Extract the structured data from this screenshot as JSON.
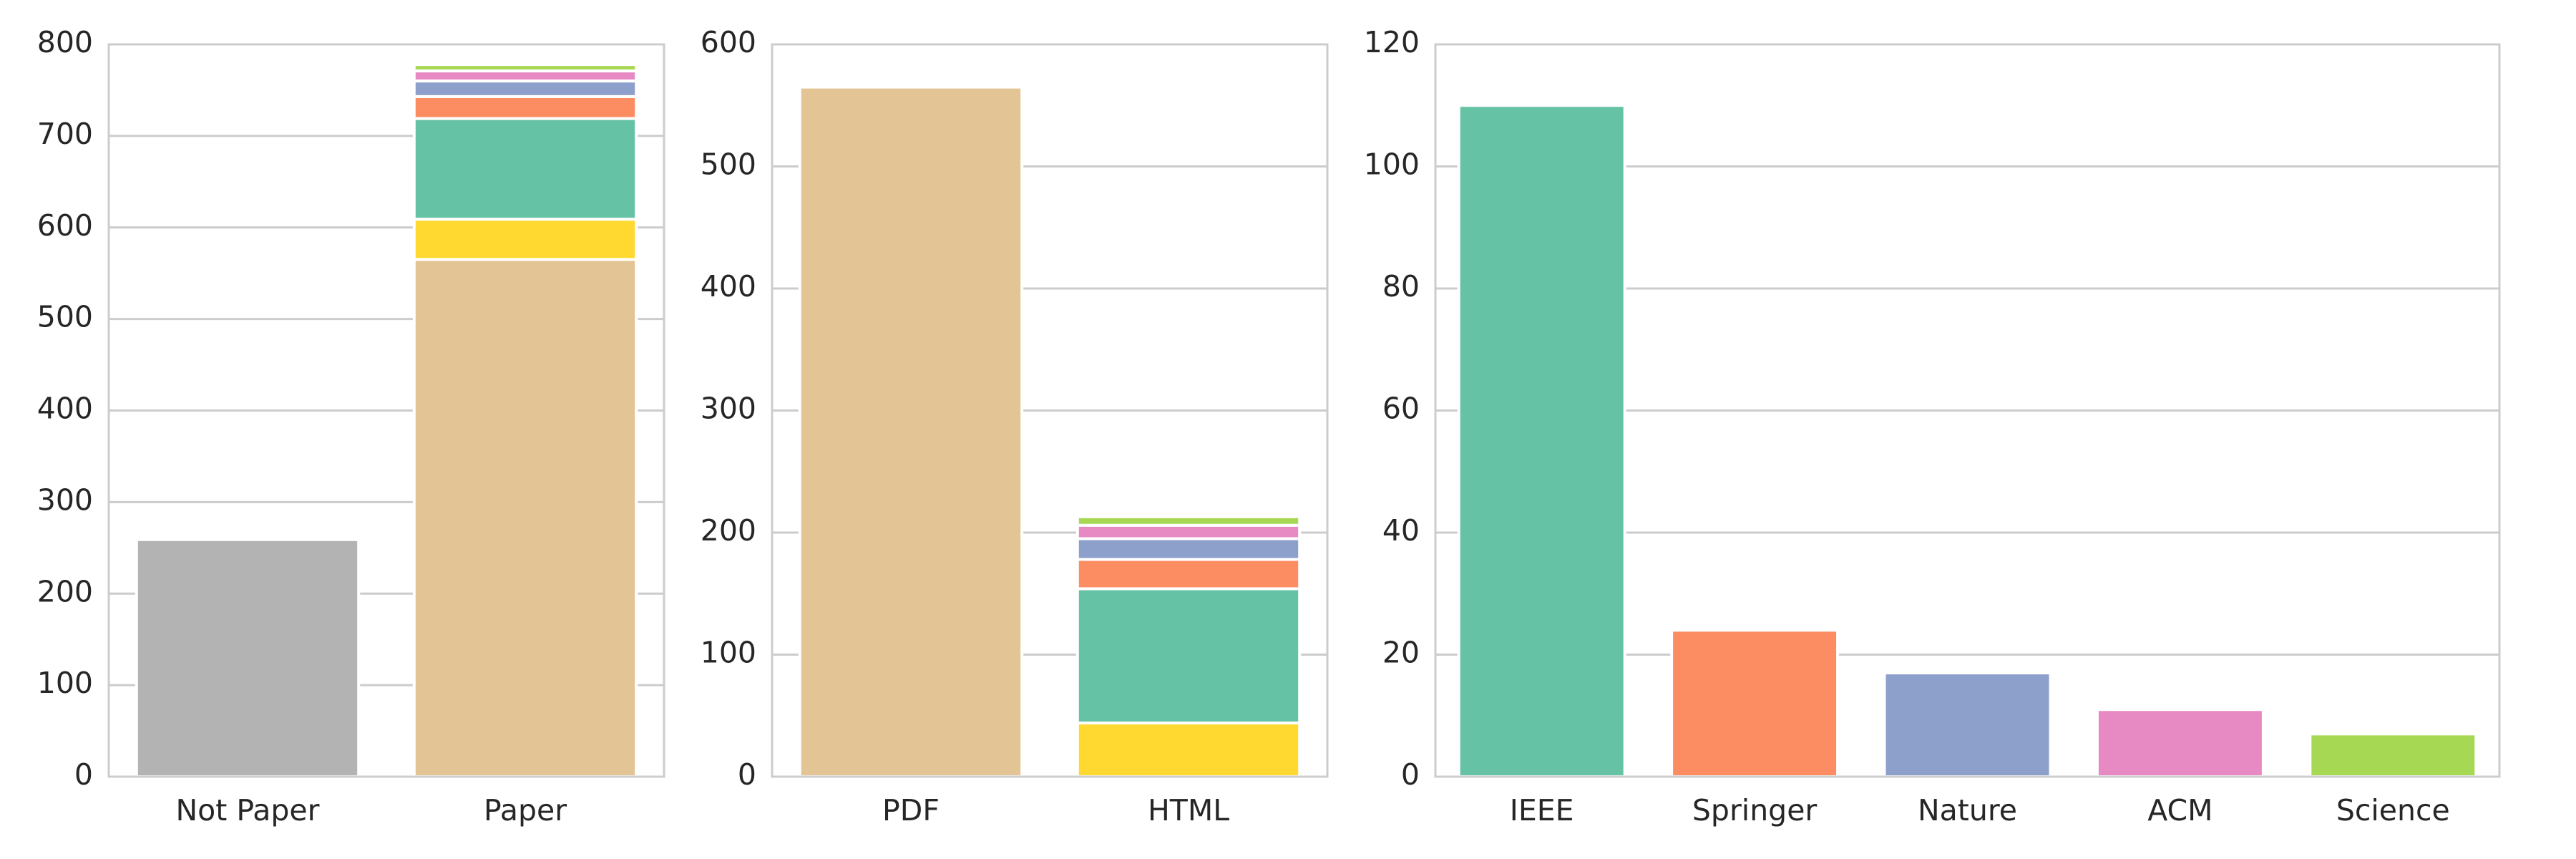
{
  "colors": {
    "not_paper": "#b3b3b3",
    "pdf": "#e3c494",
    "html_undetermined": "#ffd92f",
    "ieee": "#66c2a5",
    "springer": "#fc8d62",
    "nature": "#8da0cb",
    "acm": "#e78ac3",
    "science": "#a6d854"
  },
  "chart_data": [
    {
      "type": "bar",
      "stacked": true,
      "categories": [
        "Not Paper",
        "Paper"
      ],
      "ylim": [
        0,
        800
      ],
      "yticks": [
        0,
        100,
        200,
        300,
        400,
        500,
        600,
        700,
        800
      ],
      "grid": true,
      "stacks": [
        [
          {
            "value": 259,
            "color_key": "not_paper"
          }
        ],
        [
          {
            "value": 565,
            "color_key": "pdf"
          },
          {
            "value": 44,
            "color_key": "html_undetermined"
          },
          {
            "value": 110,
            "color_key": "ieee"
          },
          {
            "value": 24,
            "color_key": "springer"
          },
          {
            "value": 17,
            "color_key": "nature"
          },
          {
            "value": 11,
            "color_key": "acm"
          },
          {
            "value": 7,
            "color_key": "science"
          }
        ]
      ]
    },
    {
      "type": "bar",
      "stacked": true,
      "categories": [
        "PDF",
        "HTML"
      ],
      "ylim": [
        0,
        600
      ],
      "yticks": [
        0,
        100,
        200,
        300,
        400,
        500,
        600
      ],
      "grid": true,
      "stacks": [
        [
          {
            "value": 565,
            "color_key": "pdf"
          }
        ],
        [
          {
            "value": 44,
            "color_key": "html_undetermined"
          },
          {
            "value": 110,
            "color_key": "ieee"
          },
          {
            "value": 24,
            "color_key": "springer"
          },
          {
            "value": 17,
            "color_key": "nature"
          },
          {
            "value": 11,
            "color_key": "acm"
          },
          {
            "value": 7,
            "color_key": "science"
          }
        ]
      ]
    },
    {
      "type": "bar",
      "stacked": false,
      "categories": [
        "IEEE",
        "Springer",
        "Nature",
        "ACM",
        "Science"
      ],
      "ylim": [
        0,
        120
      ],
      "yticks": [
        0,
        20,
        40,
        60,
        80,
        100,
        120
      ],
      "grid": true,
      "stacks": [
        [
          {
            "value": 110,
            "color_key": "ieee"
          }
        ],
        [
          {
            "value": 24,
            "color_key": "springer"
          }
        ],
        [
          {
            "value": 17,
            "color_key": "nature"
          }
        ],
        [
          {
            "value": 11,
            "color_key": "acm"
          }
        ],
        [
          {
            "value": 7,
            "color_key": "science"
          }
        ]
      ]
    }
  ]
}
